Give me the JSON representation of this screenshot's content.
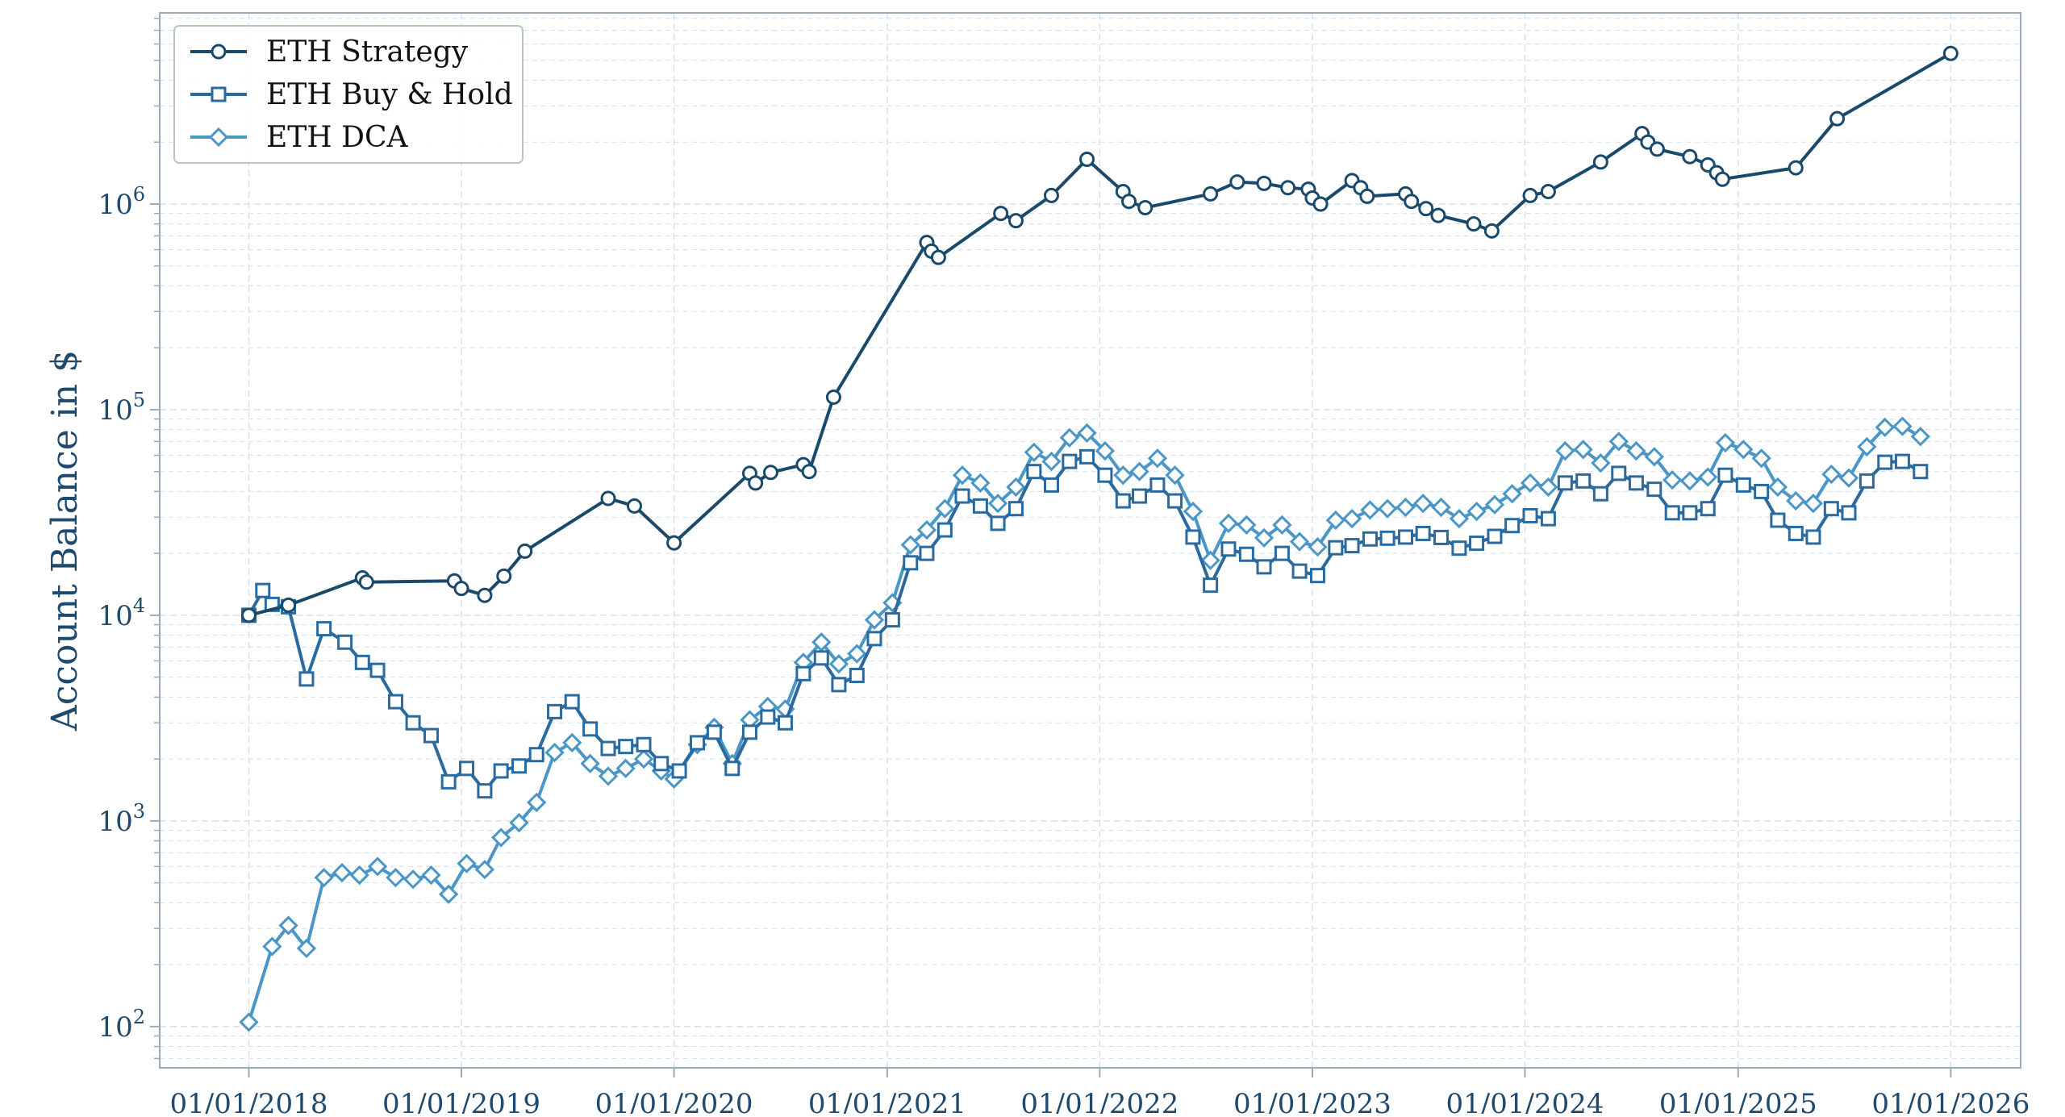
{
  "chart_data": {
    "type": "line",
    "title": "",
    "xlabel": "",
    "ylabel": "Account Balance in $",
    "yscale": "log",
    "ylim": [
      63,
      8500000
    ],
    "xlim": [
      "2017-08-01",
      "2026-05-01"
    ],
    "grid": true,
    "legend_position": "top-left",
    "x_ticks": [
      "01/01/2018",
      "01/01/2019",
      "01/01/2020",
      "01/01/2021",
      "01/01/2022",
      "01/01/2023",
      "01/01/2024",
      "01/01/2025",
      "01/01/2026"
    ],
    "y_ticks": [
      {
        "value": 100,
        "base": "10",
        "exp": "2"
      },
      {
        "value": 1000,
        "base": "10",
        "exp": "3"
      },
      {
        "value": 10000,
        "base": "10",
        "exp": "4"
      },
      {
        "value": 100000,
        "base": "10",
        "exp": "5"
      },
      {
        "value": 1000000,
        "base": "10",
        "exp": "6"
      }
    ],
    "colors": {
      "strategy": "#1a4a6b",
      "buyhold": "#2a6a9e",
      "dca": "#4a96c6",
      "axis": "#9aaab8",
      "grid": "#d5e1ea",
      "text": "#1f4a6e"
    },
    "series": [
      {
        "name": "ETH Strategy",
        "marker": "circle",
        "color": "#1a4a6b",
        "points": [
          [
            "2018-01-01",
            10000
          ],
          [
            "2018-03-10",
            11200
          ],
          [
            "2018-07-15",
            15200
          ],
          [
            "2018-07-22",
            14500
          ],
          [
            "2018-12-20",
            14700
          ],
          [
            "2019-01-01",
            13500
          ],
          [
            "2019-02-10",
            12500
          ],
          [
            "2019-03-15",
            15500
          ],
          [
            "2019-04-20",
            20500
          ],
          [
            "2019-09-10",
            37000
          ],
          [
            "2019-10-25",
            34000
          ],
          [
            "2020-01-01",
            22500
          ],
          [
            "2020-05-10",
            49000
          ],
          [
            "2020-05-20",
            44000
          ],
          [
            "2020-06-15",
            49500
          ],
          [
            "2020-08-10",
            54000
          ],
          [
            "2020-08-20",
            50000
          ],
          [
            "2020-10-01",
            115000
          ],
          [
            "2021-03-10",
            650000
          ],
          [
            "2021-03-18",
            590000
          ],
          [
            "2021-03-30",
            550000
          ],
          [
            "2021-07-15",
            900000
          ],
          [
            "2021-08-10",
            830000
          ],
          [
            "2021-10-10",
            1100000
          ],
          [
            "2021-12-10",
            1650000
          ],
          [
            "2022-02-10",
            1150000
          ],
          [
            "2022-02-20",
            1030000
          ],
          [
            "2022-03-20",
            960000
          ],
          [
            "2022-07-10",
            1120000
          ],
          [
            "2022-08-25",
            1280000
          ],
          [
            "2022-10-10",
            1260000
          ],
          [
            "2022-11-20",
            1200000
          ],
          [
            "2022-12-25",
            1180000
          ],
          [
            "2023-01-01",
            1070000
          ],
          [
            "2023-01-15",
            1000000
          ],
          [
            "2023-03-10",
            1300000
          ],
          [
            "2023-03-25",
            1200000
          ],
          [
            "2023-04-05",
            1090000
          ],
          [
            "2023-06-10",
            1120000
          ],
          [
            "2023-06-20",
            1030000
          ],
          [
            "2023-07-15",
            950000
          ],
          [
            "2023-08-05",
            880000
          ],
          [
            "2023-10-05",
            800000
          ],
          [
            "2023-11-05",
            740000
          ],
          [
            "2024-01-10",
            1100000
          ],
          [
            "2024-02-10",
            1150000
          ],
          [
            "2024-05-10",
            1600000
          ],
          [
            "2024-07-20",
            2200000
          ],
          [
            "2024-07-30",
            2000000
          ],
          [
            "2024-08-15",
            1850000
          ],
          [
            "2024-10-10",
            1700000
          ],
          [
            "2024-11-10",
            1550000
          ],
          [
            "2024-11-25",
            1420000
          ],
          [
            "2024-12-05",
            1320000
          ],
          [
            "2025-04-10",
            1500000
          ],
          [
            "2025-06-20",
            2600000
          ],
          [
            "2026-01-01",
            5400000
          ]
        ]
      },
      {
        "name": "ETH Buy & Hold",
        "marker": "square",
        "color": "#2a6a9e",
        "points": [
          [
            "2018-01-01",
            10000
          ],
          [
            "2018-01-25",
            13200
          ],
          [
            "2018-02-10",
            11300
          ],
          [
            "2018-03-10",
            11000
          ],
          [
            "2018-04-10",
            4900
          ],
          [
            "2018-05-10",
            8600
          ],
          [
            "2018-06-15",
            7400
          ],
          [
            "2018-07-15",
            5900
          ],
          [
            "2018-08-10",
            5400
          ],
          [
            "2018-09-10",
            3800
          ],
          [
            "2018-10-10",
            3000
          ],
          [
            "2018-11-10",
            2600
          ],
          [
            "2018-12-10",
            1550
          ],
          [
            "2019-01-10",
            1800
          ],
          [
            "2019-02-10",
            1400
          ],
          [
            "2019-03-10",
            1750
          ],
          [
            "2019-04-10",
            1850
          ],
          [
            "2019-05-10",
            2100
          ],
          [
            "2019-06-10",
            3400
          ],
          [
            "2019-07-10",
            3800
          ],
          [
            "2019-08-10",
            2800
          ],
          [
            "2019-09-10",
            2250
          ],
          [
            "2019-10-10",
            2300
          ],
          [
            "2019-11-10",
            2350
          ],
          [
            "2019-12-10",
            1900
          ],
          [
            "2020-01-10",
            1750
          ],
          [
            "2020-02-10",
            2400
          ],
          [
            "2020-03-10",
            2700
          ],
          [
            "2020-04-10",
            1800
          ],
          [
            "2020-05-10",
            2700
          ],
          [
            "2020-06-10",
            3200
          ],
          [
            "2020-07-10",
            3000
          ],
          [
            "2020-08-10",
            5200
          ],
          [
            "2020-09-10",
            6200
          ],
          [
            "2020-10-10",
            4600
          ],
          [
            "2020-11-10",
            5100
          ],
          [
            "2020-12-10",
            7700
          ],
          [
            "2021-01-10",
            9500
          ],
          [
            "2021-02-10",
            18000
          ],
          [
            "2021-03-10",
            20000
          ],
          [
            "2021-04-10",
            26000
          ],
          [
            "2021-05-10",
            38000
          ],
          [
            "2021-06-10",
            34000
          ],
          [
            "2021-07-10",
            28000
          ],
          [
            "2021-08-10",
            33000
          ],
          [
            "2021-09-10",
            50000
          ],
          [
            "2021-10-10",
            43000
          ],
          [
            "2021-11-10",
            56000
          ],
          [
            "2021-12-10",
            59000
          ],
          [
            "2022-01-10",
            48000
          ],
          [
            "2022-02-10",
            36000
          ],
          [
            "2022-03-10",
            38000
          ],
          [
            "2022-04-10",
            43000
          ],
          [
            "2022-05-10",
            36000
          ],
          [
            "2022-06-10",
            24000
          ],
          [
            "2022-07-10",
            14000
          ],
          [
            "2022-08-10",
            21000
          ],
          [
            "2022-09-10",
            19800
          ],
          [
            "2022-10-10",
            17200
          ],
          [
            "2022-11-10",
            20000
          ],
          [
            "2022-12-10",
            16400
          ],
          [
            "2023-01-10",
            15600
          ],
          [
            "2023-02-10",
            21300
          ],
          [
            "2023-03-10",
            21800
          ],
          [
            "2023-04-10",
            23500
          ],
          [
            "2023-05-10",
            23700
          ],
          [
            "2023-06-10",
            24000
          ],
          [
            "2023-07-10",
            25000
          ],
          [
            "2023-08-10",
            23900
          ],
          [
            "2023-09-10",
            21200
          ],
          [
            "2023-10-10",
            22400
          ],
          [
            "2023-11-10",
            24200
          ],
          [
            "2023-12-10",
            27300
          ],
          [
            "2024-01-10",
            30500
          ],
          [
            "2024-02-10",
            29500
          ],
          [
            "2024-03-10",
            44000
          ],
          [
            "2024-04-10",
            45000
          ],
          [
            "2024-05-10",
            39000
          ],
          [
            "2024-06-10",
            49000
          ],
          [
            "2024-07-10",
            44000
          ],
          [
            "2024-08-10",
            41000
          ],
          [
            "2024-09-10",
            31500
          ],
          [
            "2024-10-10",
            31500
          ],
          [
            "2024-11-10",
            33000
          ],
          [
            "2024-12-10",
            48000
          ],
          [
            "2025-01-10",
            43000
          ],
          [
            "2025-02-10",
            40000
          ],
          [
            "2025-03-10",
            29000
          ],
          [
            "2025-04-10",
            25000
          ],
          [
            "2025-05-10",
            24000
          ],
          [
            "2025-06-10",
            33000
          ],
          [
            "2025-07-10",
            31500
          ],
          [
            "2025-08-10",
            45000
          ],
          [
            "2025-09-10",
            55500
          ],
          [
            "2025-10-10",
            56000
          ],
          [
            "2025-11-10",
            50000
          ]
        ]
      },
      {
        "name": "ETH DCA",
        "marker": "diamond",
        "color": "#4a96c6",
        "points": [
          [
            "2018-01-01",
            105
          ],
          [
            "2018-02-10",
            245
          ],
          [
            "2018-03-10",
            310
          ],
          [
            "2018-04-10",
            240
          ],
          [
            "2018-05-10",
            530
          ],
          [
            "2018-06-10",
            560
          ],
          [
            "2018-07-10",
            545
          ],
          [
            "2018-08-10",
            600
          ],
          [
            "2018-09-10",
            530
          ],
          [
            "2018-10-10",
            520
          ],
          [
            "2018-11-10",
            545
          ],
          [
            "2018-12-10",
            440
          ],
          [
            "2019-01-10",
            620
          ],
          [
            "2019-02-10",
            580
          ],
          [
            "2019-03-10",
            830
          ],
          [
            "2019-04-10",
            980
          ],
          [
            "2019-05-10",
            1230
          ],
          [
            "2019-06-10",
            2150
          ],
          [
            "2019-07-10",
            2400
          ],
          [
            "2019-08-10",
            1900
          ],
          [
            "2019-09-10",
            1650
          ],
          [
            "2019-10-10",
            1800
          ],
          [
            "2019-11-10",
            2000
          ],
          [
            "2019-12-10",
            1750
          ],
          [
            "2020-01-01",
            1600
          ],
          [
            "2020-02-10",
            2350
          ],
          [
            "2020-03-10",
            2850
          ],
          [
            "2020-04-10",
            1900
          ],
          [
            "2020-05-10",
            3100
          ],
          [
            "2020-06-10",
            3600
          ],
          [
            "2020-07-10",
            3500
          ],
          [
            "2020-08-10",
            5900
          ],
          [
            "2020-09-10",
            7400
          ],
          [
            "2020-10-10",
            5800
          ],
          [
            "2020-11-10",
            6500
          ],
          [
            "2020-12-10",
            9500
          ],
          [
            "2021-01-10",
            11500
          ],
          [
            "2021-02-10",
            22000
          ],
          [
            "2021-03-10",
            26000
          ],
          [
            "2021-04-10",
            33000
          ],
          [
            "2021-05-10",
            48000
          ],
          [
            "2021-06-10",
            44000
          ],
          [
            "2021-07-10",
            35000
          ],
          [
            "2021-08-10",
            42000
          ],
          [
            "2021-09-10",
            62000
          ],
          [
            "2021-10-10",
            56000
          ],
          [
            "2021-11-10",
            73000
          ],
          [
            "2021-12-10",
            77000
          ],
          [
            "2022-01-10",
            63000
          ],
          [
            "2022-02-10",
            48000
          ],
          [
            "2022-03-10",
            50000
          ],
          [
            "2022-04-10",
            58000
          ],
          [
            "2022-05-10",
            48000
          ],
          [
            "2022-06-10",
            32000
          ],
          [
            "2022-07-10",
            18500
          ],
          [
            "2022-08-10",
            28000
          ],
          [
            "2022-09-10",
            27500
          ],
          [
            "2022-10-10",
            23800
          ],
          [
            "2022-11-10",
            27500
          ],
          [
            "2022-12-10",
            22800
          ],
          [
            "2023-01-10",
            21500
          ],
          [
            "2023-02-10",
            29000
          ],
          [
            "2023-03-10",
            29500
          ],
          [
            "2023-04-10",
            32500
          ],
          [
            "2023-05-10",
            33000
          ],
          [
            "2023-06-10",
            33500
          ],
          [
            "2023-07-10",
            35000
          ],
          [
            "2023-08-10",
            33500
          ],
          [
            "2023-09-10",
            29500
          ],
          [
            "2023-10-10",
            32000
          ],
          [
            "2023-11-10",
            34500
          ],
          [
            "2023-12-10",
            39000
          ],
          [
            "2024-01-10",
            44000
          ],
          [
            "2024-02-10",
            42000
          ],
          [
            "2024-03-10",
            63000
          ],
          [
            "2024-04-10",
            64000
          ],
          [
            "2024-05-10",
            55000
          ],
          [
            "2024-06-10",
            70000
          ],
          [
            "2024-07-10",
            63000
          ],
          [
            "2024-08-10",
            59000
          ],
          [
            "2024-09-10",
            45500
          ],
          [
            "2024-10-10",
            45000
          ],
          [
            "2024-11-10",
            47000
          ],
          [
            "2024-12-10",
            69000
          ],
          [
            "2025-01-10",
            64000
          ],
          [
            "2025-02-10",
            58000
          ],
          [
            "2025-03-10",
            42000
          ],
          [
            "2025-04-10",
            36000
          ],
          [
            "2025-05-10",
            35000
          ],
          [
            "2025-06-10",
            48500
          ],
          [
            "2025-07-10",
            46500
          ],
          [
            "2025-08-10",
            66000
          ],
          [
            "2025-09-10",
            82000
          ],
          [
            "2025-10-10",
            83000
          ],
          [
            "2025-11-10",
            74000
          ]
        ]
      }
    ]
  }
}
